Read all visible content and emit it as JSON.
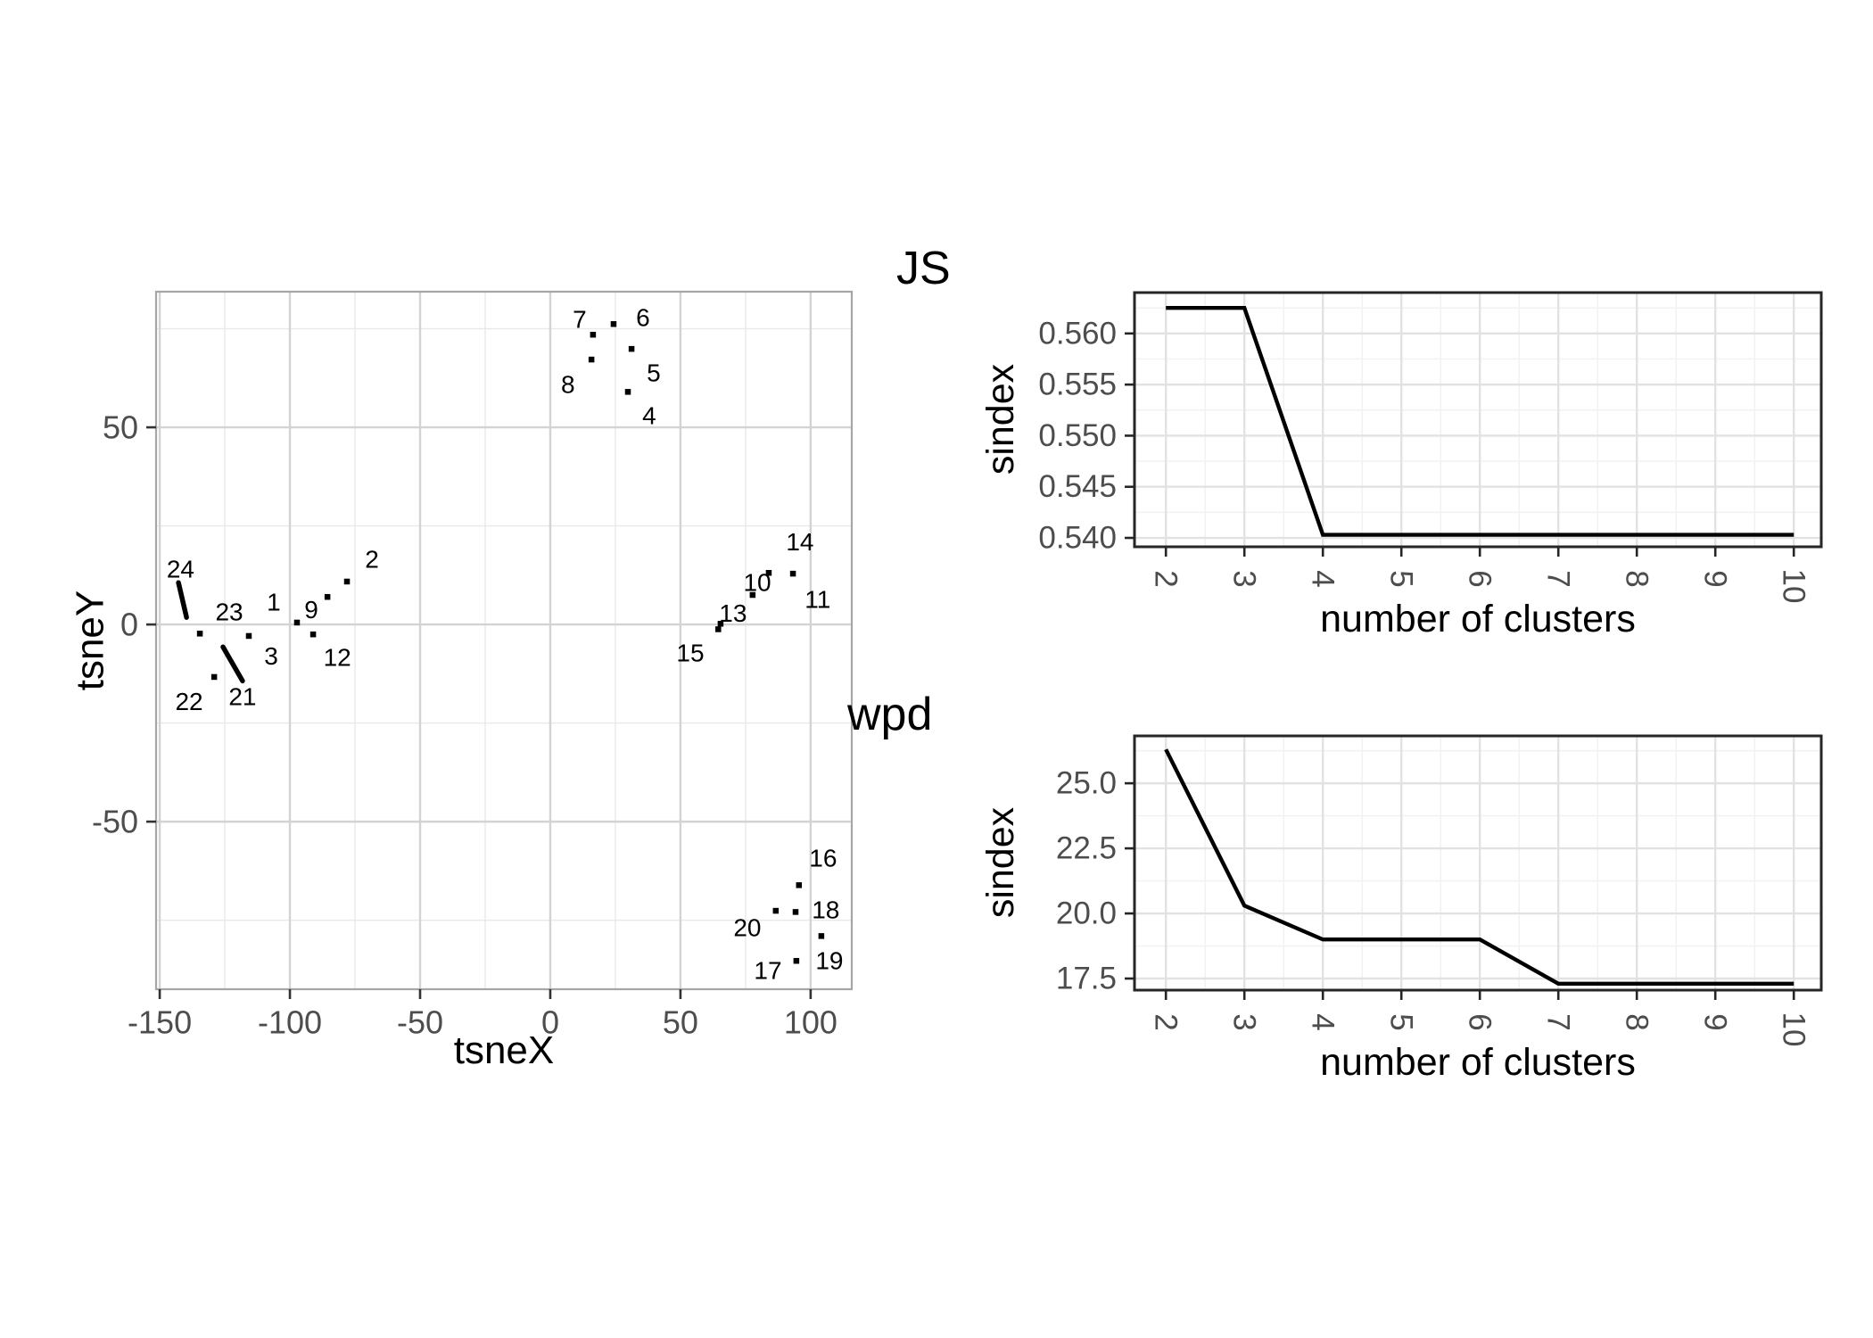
{
  "figure": {
    "background": "#ffffff",
    "text_color": "#4d4d4d",
    "title_color": "#000000",
    "line_color": "#000000",
    "chart_data": [
      {
        "id": "scatter",
        "type": "scatter",
        "title": "",
        "xlabel": "tsneX",
        "ylabel": "tsneY",
        "xlim": [
          -151.4,
          115.8
        ],
        "ylim": [
          -92.5,
          84.4
        ],
        "xticks": [
          -150,
          -100,
          -50,
          0,
          50,
          100
        ],
        "xtick_labels": [
          "-150",
          "-100",
          "-50",
          "0",
          "50",
          "100"
        ],
        "yticks": [
          50,
          0,
          -50
        ],
        "ytick_labels": [
          "50",
          "0",
          "-50"
        ],
        "grid": "major+minor",
        "points": [
          {
            "x": 24.3,
            "y": 76.2
          },
          {
            "x": 16.4,
            "y": 73.5
          },
          {
            "x": 31.2,
            "y": 69.9
          },
          {
            "x": 15.8,
            "y": 67.2
          },
          {
            "x": 29.8,
            "y": 59.0
          },
          {
            "x": -134.6,
            "y": -2.3
          },
          {
            "x": -129.1,
            "y": -13.3
          },
          {
            "x": -115.8,
            "y": -2.9
          },
          {
            "x": -97.3,
            "y": 0.5
          },
          {
            "x": -91.1,
            "y": -2.5
          },
          {
            "x": -85.6,
            "y": 7.0
          },
          {
            "x": -78.1,
            "y": 10.9
          },
          {
            "x": 83.9,
            "y": 13.1
          },
          {
            "x": 93.2,
            "y": 12.9
          },
          {
            "x": 77.7,
            "y": 7.5
          },
          {
            "x": 65.4,
            "y": 0.2
          },
          {
            "x": 64.5,
            "y": -1.2
          },
          {
            "x": 95.5,
            "y": -66.1
          },
          {
            "x": 86.6,
            "y": -72.6
          },
          {
            "x": 94.2,
            "y": -72.9
          },
          {
            "x": 104.1,
            "y": -79.0
          },
          {
            "x": 94.5,
            "y": -85.3
          }
        ],
        "segments": [
          {
            "label": "24",
            "x1": -142.8,
            "y1": 10.6,
            "x2": -139.7,
            "y2": 1.8
          },
          {
            "label": "21",
            "x1": -125.7,
            "y1": -5.7,
            "x2": -118.2,
            "y2": -14.3
          }
        ],
        "point_labels": [
          {
            "text": "24",
            "x": -142.0,
            "y": 14.0
          },
          {
            "text": "23",
            "x": -123.3,
            "y": 3.2
          },
          {
            "text": "22",
            "x": -138.7,
            "y": -19.5
          },
          {
            "text": "21",
            "x": -118.2,
            "y": -18.3
          },
          {
            "text": "3",
            "x": -107.2,
            "y": -8.0
          },
          {
            "text": "1",
            "x": -106.2,
            "y": 5.7
          },
          {
            "text": "9",
            "x": -91.8,
            "y": 3.8
          },
          {
            "text": "12",
            "x": -81.8,
            "y": -8.4
          },
          {
            "text": "2",
            "x": -68.5,
            "y": 16.5
          },
          {
            "text": "7",
            "x": 11.3,
            "y": 77.4
          },
          {
            "text": "6",
            "x": 35.6,
            "y": 77.8
          },
          {
            "text": "8",
            "x": 6.8,
            "y": 60.9
          },
          {
            "text": "5",
            "x": 39.7,
            "y": 63.8
          },
          {
            "text": "4",
            "x": 38.0,
            "y": 52.9
          },
          {
            "text": "14",
            "x": 95.9,
            "y": 21.0
          },
          {
            "text": "10",
            "x": 79.5,
            "y": 10.6
          },
          {
            "text": "11",
            "x": 102.7,
            "y": 6.3
          },
          {
            "text": "13",
            "x": 70.2,
            "y": 2.9
          },
          {
            "text": "15",
            "x": 53.8,
            "y": -7.2
          },
          {
            "text": "16",
            "x": 104.8,
            "y": -59.3
          },
          {
            "text": "18",
            "x": 105.8,
            "y": -72.4
          },
          {
            "text": "20",
            "x": 75.7,
            "y": -76.9
          },
          {
            "text": "19",
            "x": 107.2,
            "y": -85.3
          },
          {
            "text": "17",
            "x": 83.6,
            "y": -87.8
          }
        ]
      },
      {
        "id": "js",
        "type": "line",
        "title": "JS",
        "xlabel": "number of clusters",
        "ylabel": "sindex",
        "xlim": [
          1.6,
          10.35
        ],
        "ylim": [
          0.53913,
          0.564
        ],
        "xticks": [
          2,
          3,
          4,
          5,
          6,
          7,
          8,
          9,
          10
        ],
        "xtick_labels": [
          "2",
          "3",
          "4",
          "5",
          "6",
          "7",
          "8",
          "9",
          "10"
        ],
        "ytick_values": [
          0.56,
          0.555,
          0.55,
          0.545,
          0.54
        ],
        "ytick_labels": [
          "0.560",
          "0.555",
          "0.550",
          "0.545",
          "0.540"
        ],
        "grid": "major+minor",
        "x": [
          2,
          3,
          4,
          5,
          6,
          7,
          8,
          9,
          10
        ],
        "y": [
          0.5625,
          0.5625,
          0.5403,
          0.5403,
          0.5403,
          0.5403,
          0.5403,
          0.5403,
          0.5403
        ]
      },
      {
        "id": "wpd",
        "type": "line",
        "title": "wpd",
        "xlabel": "number of clusters",
        "ylabel": "sindex",
        "xlim": [
          1.6,
          10.35
        ],
        "ylim": [
          17.055,
          26.82
        ],
        "xticks": [
          2,
          3,
          4,
          5,
          6,
          7,
          8,
          9,
          10
        ],
        "xtick_labels": [
          "2",
          "3",
          "4",
          "5",
          "6",
          "7",
          "8",
          "9",
          "10"
        ],
        "ytick_values": [
          25.0,
          22.5,
          20.0,
          17.5
        ],
        "ytick_labels": [
          "25.0",
          "22.5",
          "20.0",
          "17.5"
        ],
        "grid": "major+minor",
        "x": [
          2,
          3,
          4,
          5,
          6,
          7,
          8,
          9,
          10
        ],
        "y": [
          26.3,
          20.3,
          19.0,
          19.0,
          19.0,
          17.3,
          17.3,
          17.3,
          17.3
        ]
      }
    ]
  }
}
